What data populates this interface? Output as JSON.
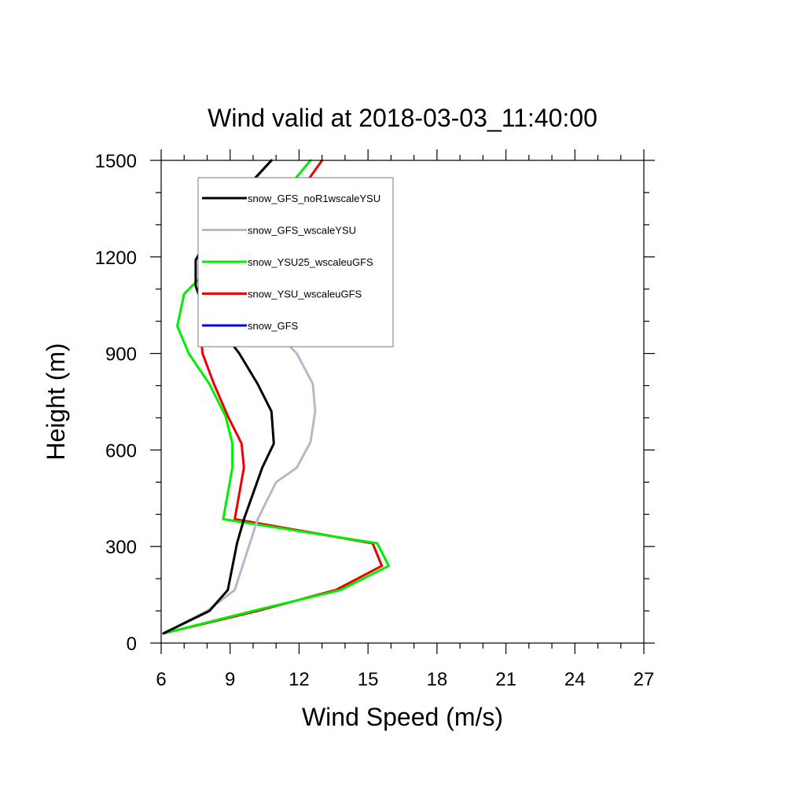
{
  "chart_data": {
    "type": "line",
    "title": "Wind valid at 2018-03-03_11:40:00",
    "xlabel": "Wind Speed (m/s)",
    "ylabel": "Height (m)",
    "xlim": [
      6,
      27
    ],
    "ylim": [
      0,
      1500
    ],
    "xticks": [
      6,
      9,
      12,
      15,
      18,
      21,
      24,
      27
    ],
    "yticks": [
      0,
      300,
      600,
      900,
      1200,
      1500
    ],
    "xtick_labels": [
      "6",
      "9",
      "12",
      "15",
      "18",
      "21",
      "24",
      "27"
    ],
    "ytick_labels": [
      "0",
      "300",
      "600",
      "900",
      "1200",
      "1500"
    ],
    "grid": false,
    "legend_position": "top-left inside plot",
    "series": [
      {
        "name": "snow_GFS_noR1wscaleYSU",
        "color": "#000000",
        "points": [
          [
            6.1,
            30
          ],
          [
            8.1,
            100
          ],
          [
            8.9,
            165
          ],
          [
            9.3,
            310
          ],
          [
            9.6,
            385
          ],
          [
            10.4,
            545
          ],
          [
            10.9,
            620
          ],
          [
            10.8,
            720
          ],
          [
            10.2,
            805
          ],
          [
            9.4,
            900
          ],
          [
            8.6,
            975
          ],
          [
            7.7,
            1070
          ],
          [
            7.5,
            1110
          ],
          [
            7.5,
            1190
          ],
          [
            8.3,
            1295
          ],
          [
            9.5,
            1400
          ],
          [
            10.8,
            1500
          ]
        ]
      },
      {
        "name": "snow_GFS_wscaleYSU",
        "color": "#b8b8cc",
        "points": [
          [
            6.1,
            30
          ],
          [
            8.0,
            100
          ],
          [
            9.2,
            165
          ],
          [
            10.2,
            385
          ],
          [
            11.0,
            500
          ],
          [
            11.9,
            545
          ],
          [
            12.5,
            625
          ],
          [
            12.7,
            720
          ],
          [
            12.6,
            805
          ],
          [
            11.9,
            900
          ],
          [
            10.9,
            975
          ],
          [
            9.7,
            1050
          ],
          [
            8.9,
            1120
          ],
          [
            8.8,
            1200
          ],
          [
            8.9,
            1295
          ],
          [
            9.6,
            1400
          ],
          [
            10.8,
            1500
          ]
        ]
      },
      {
        "name": "snow_YSU25_wscaleuGFS",
        "color": "#00ee00",
        "points": [
          [
            6.1,
            30
          ],
          [
            10.0,
            100
          ],
          [
            13.8,
            165
          ],
          [
            15.9,
            240
          ],
          [
            15.4,
            310
          ],
          [
            8.7,
            385
          ],
          [
            9.1,
            545
          ],
          [
            9.1,
            620
          ],
          [
            8.8,
            705
          ],
          [
            8.1,
            805
          ],
          [
            7.2,
            900
          ],
          [
            6.7,
            985
          ],
          [
            7.0,
            1085
          ],
          [
            8.6,
            1200
          ],
          [
            10.4,
            1320
          ],
          [
            12.5,
            1500
          ]
        ]
      },
      {
        "name": "snow_YSU_wscaleuGFS",
        "color": "#ee0000",
        "points": [
          [
            6.1,
            30
          ],
          [
            10.2,
            100
          ],
          [
            13.6,
            165
          ],
          [
            15.6,
            240
          ],
          [
            15.2,
            310
          ],
          [
            9.2,
            385
          ],
          [
            9.6,
            545
          ],
          [
            9.5,
            620
          ],
          [
            8.9,
            705
          ],
          [
            8.3,
            805
          ],
          [
            7.8,
            900
          ],
          [
            7.7,
            985
          ],
          [
            8.2,
            1085
          ],
          [
            9.9,
            1200
          ],
          [
            12.0,
            1400
          ],
          [
            13.0,
            1500
          ]
        ]
      },
      {
        "name": "snow_GFS",
        "color": "#0000ee",
        "points": []
      }
    ]
  }
}
